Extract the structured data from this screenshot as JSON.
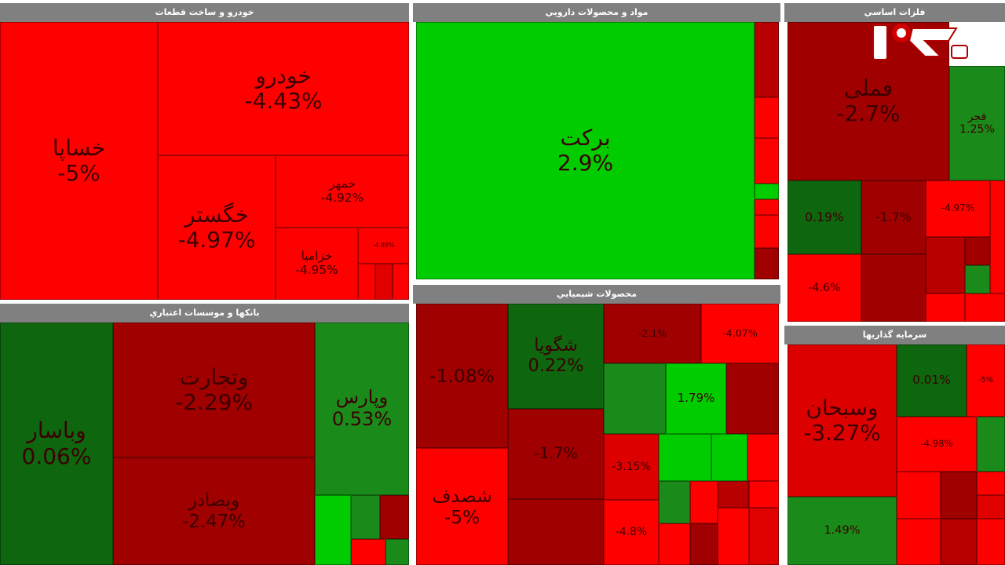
{
  "colors": {
    "neg_strong": "#ff0000",
    "neg_mid": "#dd0000",
    "neg_dark": "#a00000",
    "pos_strong": "#00cc00",
    "pos_mid": "#1a8a1a",
    "pos_dark": "#0e660e",
    "header": "#808080"
  },
  "logo": {
    "icon": "rokna-logo"
  },
  "panels": [
    {
      "id": "auto",
      "title": "خودرو و ساخت قطعات",
      "tiles": [
        {
          "name": "خساپا",
          "change": "-5%",
          "value": -5,
          "size": 28
        },
        {
          "name": "خودرو",
          "change": "-4.43%",
          "value": -4.43,
          "size": 22
        },
        {
          "name": "خگستر",
          "change": "-4.97%",
          "value": -4.97,
          "size": 16
        },
        {
          "name": "خمهر",
          "change": "-4.92%",
          "value": -4.92,
          "size": 12
        },
        {
          "name": "خزامیا",
          "change": "-4.95%",
          "value": -4.95,
          "size": 10
        },
        {
          "name": "",
          "change": "-4.88%",
          "value": -4.88,
          "size": 7
        }
      ]
    },
    {
      "id": "pharma",
      "title": "مواد و محصولات دارويي",
      "tiles": [
        {
          "name": "برکت",
          "change": "2.9%",
          "value": 2.9,
          "size": 20
        }
      ]
    },
    {
      "id": "metals",
      "title": "فلزات اساسي",
      "tiles": [
        {
          "name": "فملی",
          "change": "-2.7%",
          "value": -2.7,
          "size": 20
        },
        {
          "name": "فجر",
          "change": "1.25%",
          "value": 1.25,
          "size": 16
        },
        {
          "name": "",
          "change": "0.19%",
          "value": 0.19,
          "size": 12
        },
        {
          "name": "",
          "change": "-1.7%",
          "value": -1.7,
          "size": 11
        },
        {
          "name": "",
          "change": "-4.97%",
          "value": -4.97,
          "size": 10
        },
        {
          "name": "",
          "change": "-4.6%",
          "value": -4.6,
          "size": 10
        }
      ]
    },
    {
      "id": "banks",
      "title": "بانکها و موسسات اعتباري",
      "tiles": [
        {
          "name": "وباسار",
          "change": "0.06%",
          "value": 0.06,
          "size": 26
        },
        {
          "name": "وتجارت",
          "change": "-2.29%",
          "value": -2.29,
          "size": 22
        },
        {
          "name": "وبصادر",
          "change": "-2.47%",
          "value": -2.47,
          "size": 20
        },
        {
          "name": "وپارس",
          "change": "0.53%",
          "value": 0.53,
          "size": 18
        }
      ]
    },
    {
      "id": "chem",
      "title": "محصولات شيميايي",
      "tiles": [
        {
          "name": "",
          "change": "-1.08%",
          "value": -1.08,
          "size": 20
        },
        {
          "name": "شگویا",
          "change": "0.22%",
          "value": 0.22,
          "size": 16
        },
        {
          "name": "شصدف",
          "change": "-5%",
          "value": -5,
          "size": 16
        },
        {
          "name": "",
          "change": "-1.7%",
          "value": -1.7,
          "size": 14
        },
        {
          "name": "",
          "change": "-2.1%",
          "value": -2.1,
          "size": 12
        },
        {
          "name": "",
          "change": "-4.07%",
          "value": -4.07,
          "size": 12
        },
        {
          "name": "",
          "change": "1.79%",
          "value": 1.79,
          "size": 10
        },
        {
          "name": "",
          "change": "-3.15%",
          "value": -3.15,
          "size": 10
        },
        {
          "name": "",
          "change": "-4.8%",
          "value": -4.8,
          "size": 8
        }
      ]
    },
    {
      "id": "invest",
      "title": "سرمايه گذاريها",
      "tiles": [
        {
          "name": "وسبحان",
          "change": "-3.27%",
          "value": -3.27,
          "size": 22
        },
        {
          "name": "",
          "change": "0.01%",
          "value": 0.01,
          "size": 12
        },
        {
          "name": "",
          "change": "-4.98%",
          "value": -4.98,
          "size": 12
        },
        {
          "name": "",
          "change": "-5%",
          "value": -5,
          "size": 8
        },
        {
          "name": "",
          "change": "1.49%",
          "value": 1.49,
          "size": 12
        }
      ]
    }
  ],
  "chart_data": {
    "type": "treemap",
    "title": "",
    "sectors": [
      {
        "name": "خودرو و ساخت قطعات",
        "items": [
          {
            "label": "خساپا",
            "value": -5
          },
          {
            "label": "خودرو",
            "value": -4.43
          },
          {
            "label": "خگستر",
            "value": -4.97
          },
          {
            "label": "خمهر",
            "value": -4.92
          },
          {
            "label": "خزامیا",
            "value": -4.95
          }
        ]
      },
      {
        "name": "مواد و محصولات دارويي",
        "items": [
          {
            "label": "برکت",
            "value": 2.9
          }
        ]
      },
      {
        "name": "فلزات اساسي",
        "items": [
          {
            "label": "فملی",
            "value": -2.7
          },
          {
            "label": "فجر",
            "value": 1.25
          }
        ]
      },
      {
        "name": "بانکها و موسسات اعتباري",
        "items": [
          {
            "label": "وباسار",
            "value": 0.06
          },
          {
            "label": "وتجارت",
            "value": -2.29
          },
          {
            "label": "وبصادر",
            "value": -2.47
          },
          {
            "label": "وپارس",
            "value": 0.53
          }
        ]
      },
      {
        "name": "محصولات شيميايي",
        "items": [
          {
            "label": "شگویا",
            "value": 0.22
          },
          {
            "label": "شصدف",
            "value": -5
          }
        ]
      },
      {
        "name": "سرمايه گذاريها",
        "items": [
          {
            "label": "وسبحان",
            "value": -3.27
          }
        ]
      }
    ]
  }
}
